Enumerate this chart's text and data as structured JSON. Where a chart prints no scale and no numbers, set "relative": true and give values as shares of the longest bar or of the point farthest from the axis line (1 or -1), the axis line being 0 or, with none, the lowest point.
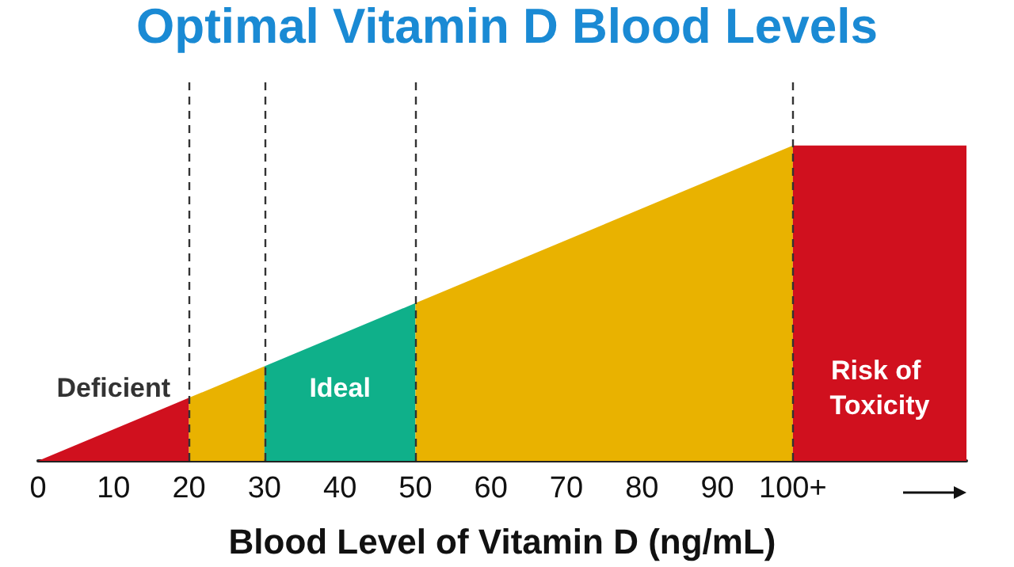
{
  "chart_data": {
    "type": "area",
    "title": "Optimal Vitamin D Blood Levels",
    "xlabel": "Blood Level of Vitamin D (ng/mL)",
    "relative": true,
    "xlim": [
      0,
      123
    ],
    "xticks": [
      0,
      10,
      20,
      30,
      40,
      50,
      60,
      70,
      80,
      90,
      {
        "value": 100,
        "label": "100+"
      }
    ],
    "series": [
      {
        "name": "Deficient",
        "color": "#d0101e",
        "x": [
          0,
          20
        ],
        "values": [
          0,
          0.2
        ]
      },
      {
        "color": "#e9b200",
        "x": [
          20,
          30
        ],
        "values": [
          0.2,
          0.3
        ]
      },
      {
        "name": "Ideal",
        "color": "#0fb08a",
        "x": [
          30,
          50
        ],
        "values": [
          0.3,
          0.5
        ]
      },
      {
        "color": "#e9b200",
        "x": [
          50,
          100
        ],
        "values": [
          0.5,
          1
        ]
      },
      {
        "name": "Risk of Toxicity",
        "color": "#d0101e",
        "x": [
          100,
          123
        ],
        "values": [
          1,
          1
        ]
      }
    ],
    "ref_lines": [
      {
        "axis": "x",
        "value": 20,
        "color": "#333333",
        "line_style": "dashed"
      },
      {
        "axis": "x",
        "value": 30,
        "color": "#333333",
        "line_style": "dashed"
      },
      {
        "axis": "x",
        "value": 50,
        "color": "#333333",
        "line_style": "dashed"
      },
      {
        "axis": "x",
        "value": 100,
        "color": "#333333",
        "line_style": "dashed"
      }
    ],
    "grid": false,
    "legend": false
  }
}
